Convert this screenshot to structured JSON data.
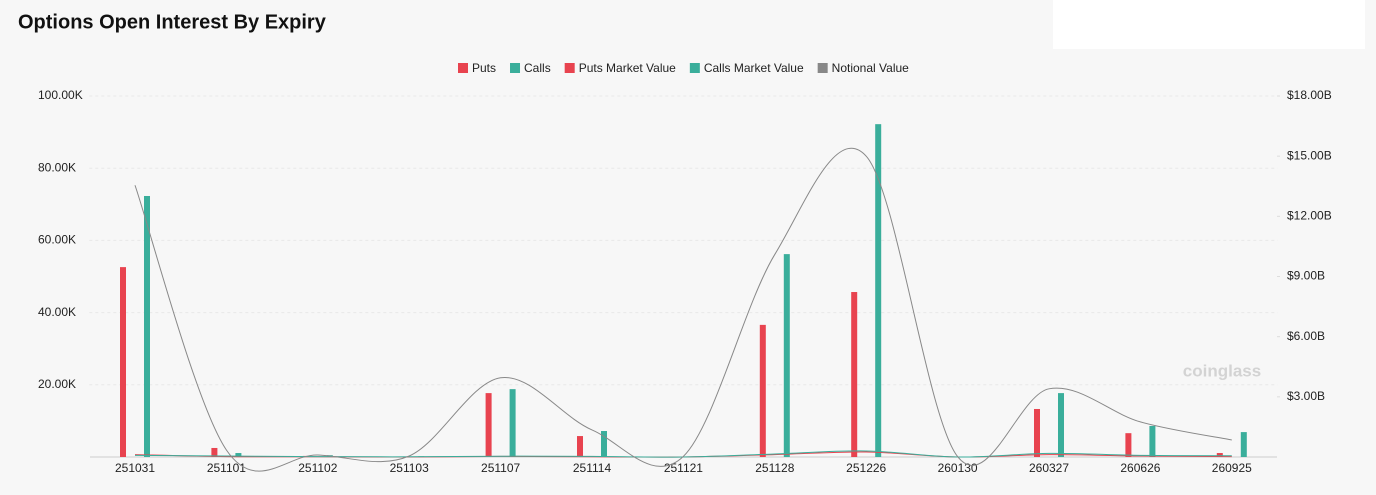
{
  "chart_data": {
    "type": "bar",
    "title": "Options Open Interest By Expiry",
    "watermark": "coinglass",
    "categories": [
      "251031",
      "251101",
      "251102",
      "251103",
      "251107",
      "251114",
      "251121",
      "251128",
      "251226",
      "260130",
      "260327",
      "260626",
      "260925"
    ],
    "series": [
      {
        "name": "Puts",
        "type": "bar",
        "color": "#e8434f",
        "values": [
          52600,
          2500,
          300,
          100,
          17700,
          5800,
          100,
          36600,
          45700,
          100,
          13300,
          6600,
          1100
        ]
      },
      {
        "name": "Calls",
        "type": "bar",
        "color": "#3aae9b",
        "values": [
          72300,
          1100,
          500,
          200,
          18800,
          7200,
          100,
          56200,
          92200,
          100,
          17700,
          8600,
          6900
        ]
      },
      {
        "name": "Puts Market Value",
        "type": "line",
        "axis": "y2",
        "color": "#e8434f",
        "values": [
          0.12,
          0.02,
          0.01,
          0,
          0.03,
          0.01,
          0,
          0.12,
          0.25,
          0,
          0.12,
          0.05,
          0.02
        ]
      },
      {
        "name": "Calls Market Value",
        "type": "line",
        "axis": "y2",
        "color": "#3aae9b",
        "values": [
          0.08,
          0.05,
          0.02,
          0.01,
          0.04,
          0.03,
          0,
          0.15,
          0.3,
          0,
          0.18,
          0.08,
          0.06
        ]
      },
      {
        "name": "Notional Value",
        "type": "line",
        "axis": "y2",
        "color": "#888888",
        "values": [
          13.55,
          0.35,
          0.1,
          0.05,
          3.95,
          1.35,
          0.03,
          10.1,
          15.0,
          0.02,
          3.4,
          1.75,
          0.85
        ]
      }
    ],
    "ylim": [
      0,
      100000
    ],
    "yticks": [
      {
        "value": 20000,
        "label": "20.00K"
      },
      {
        "value": 40000,
        "label": "40.00K"
      },
      {
        "value": 60000,
        "label": "60.00K"
      },
      {
        "value": 80000,
        "label": "80.00K"
      },
      {
        "value": 100000,
        "label": "100.00K"
      }
    ],
    "y2lim": [
      0,
      18
    ],
    "y2ticks": [
      {
        "value": 3,
        "label": "$3.00B"
      },
      {
        "value": 6,
        "label": "$6.00B"
      },
      {
        "value": 9,
        "label": "$9.00B"
      },
      {
        "value": 12,
        "label": "$12.00B"
      },
      {
        "value": 15,
        "label": "$15.00B"
      },
      {
        "value": 18,
        "label": "$18.00B"
      }
    ],
    "grid": true,
    "legend": "top"
  }
}
